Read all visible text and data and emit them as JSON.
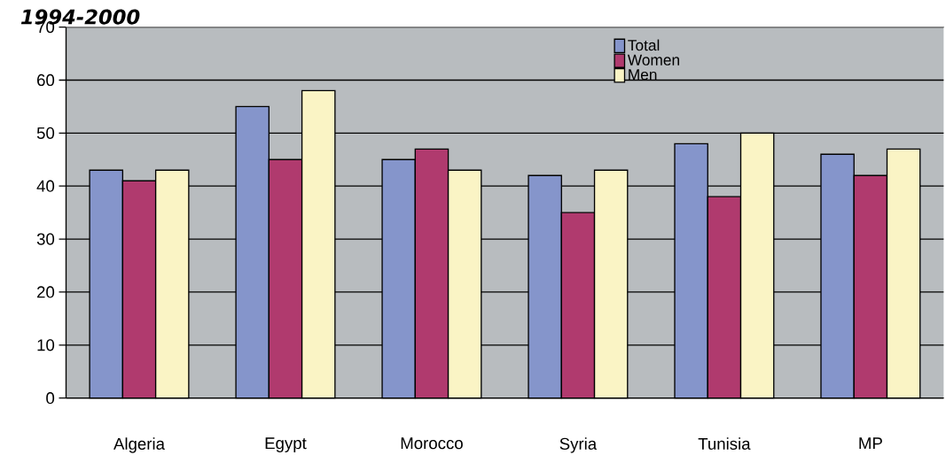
{
  "chart_data": {
    "type": "bar",
    "title": "1994-2000",
    "categories": [
      "Algeria",
      "Egypt",
      "Morocco",
      "Syria",
      "Tunisia",
      "MP"
    ],
    "series": [
      {
        "name": "Total",
        "color": "#8595cb",
        "values": [
          43,
          55,
          45,
          42,
          48,
          46
        ]
      },
      {
        "name": "Women",
        "color": "#b03a6e",
        "values": [
          41,
          45,
          47,
          35,
          38,
          42
        ]
      },
      {
        "name": "Men",
        "color": "#faf4c5",
        "values": [
          43,
          58,
          43,
          43,
          50,
          47
        ]
      }
    ],
    "ylim": [
      0,
      70
    ],
    "yticks": [
      0,
      10,
      20,
      30,
      40,
      50,
      60,
      70
    ],
    "grid": "y",
    "legend": "top"
  }
}
